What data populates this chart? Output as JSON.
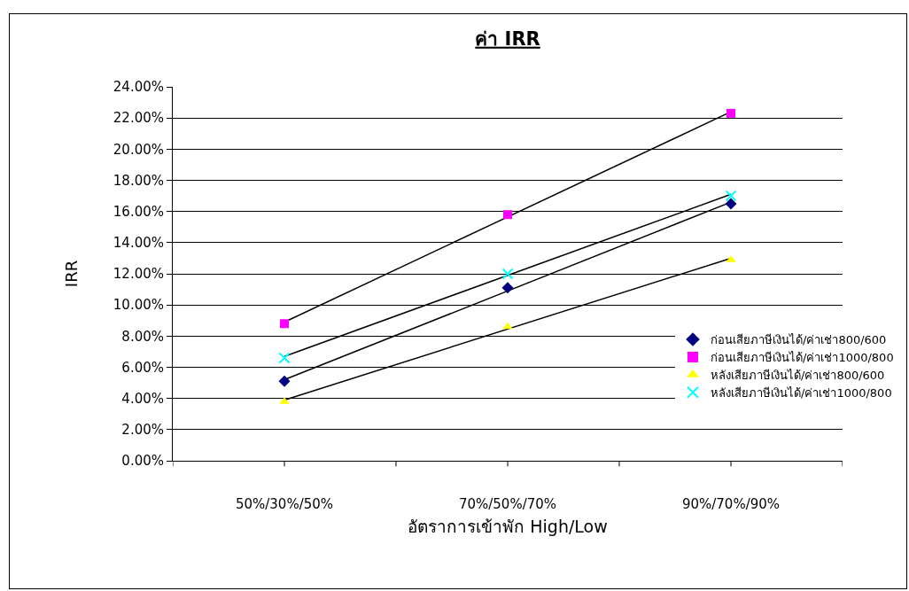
{
  "chart_data": {
    "type": "scatter",
    "title": "ค่า IRR",
    "xlabel": "อัตราการเข้าพัก High/Low",
    "ylabel": "IRR",
    "categories": [
      "50%/30%/50%",
      "70%/50%/70%",
      "90%/70%/90%"
    ],
    "ylim": [
      0,
      24
    ],
    "yticks": [
      {
        "value": 0,
        "label": "0.00%"
      },
      {
        "value": 2,
        "label": "2.00%"
      },
      {
        "value": 4,
        "label": "4.00%"
      },
      {
        "value": 6,
        "label": "6.00%"
      },
      {
        "value": 8,
        "label": "8.00%"
      },
      {
        "value": 10,
        "label": "10.00%"
      },
      {
        "value": 12,
        "label": "12.00%"
      },
      {
        "value": 14,
        "label": "14.00%"
      },
      {
        "value": 16,
        "label": "16.00%"
      },
      {
        "value": 18,
        "label": "18.00%"
      },
      {
        "value": 20,
        "label": "20.00%"
      },
      {
        "value": 22,
        "label": "22.00%"
      },
      {
        "value": 24,
        "label": "24.00%"
      }
    ],
    "grid": "y",
    "legend": "right",
    "series": [
      {
        "name": "ก่อนเสียภาษีเงินได้/ค่าเช่า800/600",
        "color": "#000080",
        "marker": "diamond",
        "values": [
          5.1,
          11.1,
          16.5
        ]
      },
      {
        "name": "ก่อนเสียภาษีเงินได้/ค่าเช่า1000/800",
        "color": "#ff00ff",
        "marker": "square",
        "values": [
          8.8,
          15.8,
          22.3
        ]
      },
      {
        "name": "หลังเสียภาษีเงินได้/ค่าเช่า800/600",
        "color": "#ffff00",
        "marker": "triangle",
        "values": [
          3.8,
          8.6,
          12.9
        ]
      },
      {
        "name": "หลังเสียภาษีเงินได้/ค่าเช่า1000/800",
        "color": "#00ffff",
        "marker": "cross",
        "values": [
          6.6,
          12.0,
          17.0
        ]
      },
      {
        "type": "line",
        "color": "#000000",
        "marker": "none",
        "line_style": "solid",
        "x": [
          "50%/30%/50%",
          "90%/70%/90%"
        ],
        "values": [
          5.2,
          16.6
        ]
      },
      {
        "type": "line",
        "color": "#000000",
        "marker": "none",
        "line_style": "solid",
        "x": [
          "50%/30%/50%",
          "90%/70%/90%"
        ],
        "values": [
          8.9,
          22.4
        ]
      },
      {
        "type": "line",
        "color": "#000000",
        "marker": "none",
        "line_style": "solid",
        "x": [
          "50%/30%/50%",
          "90%/70%/90%"
        ],
        "values": [
          3.9,
          13.0
        ]
      },
      {
        "type": "line",
        "color": "#000000",
        "marker": "none",
        "line_style": "solid",
        "x": [
          "50%/30%/50%",
          "90%/70%/90%"
        ],
        "values": [
          6.7,
          17.1
        ]
      }
    ]
  }
}
